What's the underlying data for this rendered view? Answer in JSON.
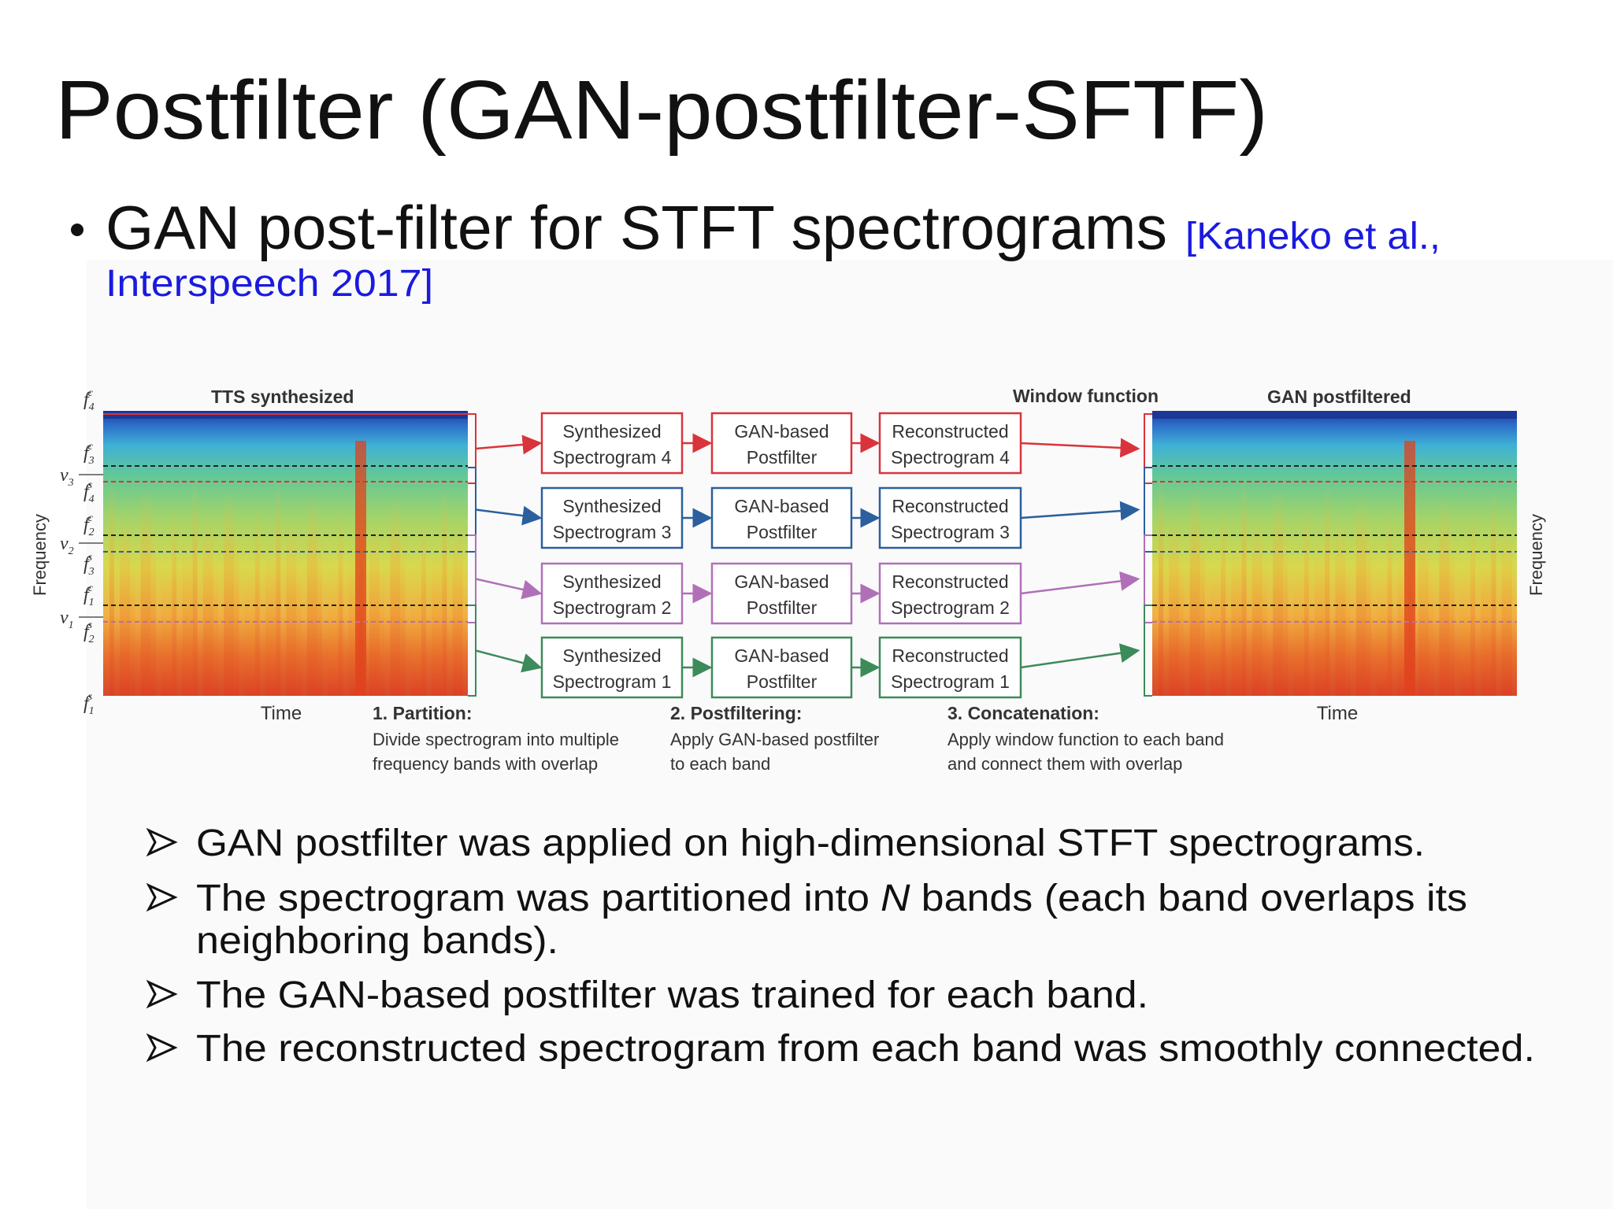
{
  "title": "Postfilter (GAN-postfilter-SFTF)",
  "bullet": {
    "text": "GAN post-filter for STFT spectrograms",
    "citation": [
      "[Kaneko et al.,",
      "Interspeech 2017]"
    ]
  },
  "figure": {
    "left_title": "TTS synthesized",
    "right_title": "GAN postfiltered",
    "window_label": "Window function",
    "y_axis_label": "Frequency",
    "x_axis_label": "Time",
    "freq_labels": [
      {
        "base": "f",
        "sub": "4",
        "sup": "c"
      },
      {
        "base": "f",
        "sub": "3",
        "sup": "c"
      },
      {
        "base": "v",
        "sub": "3"
      },
      {
        "base": "f",
        "sub": "4",
        "sup": "s"
      },
      {
        "base": "f",
        "sub": "2",
        "sup": "c"
      },
      {
        "base": "v",
        "sub": "2"
      },
      {
        "base": "f",
        "sub": "3",
        "sup": "s"
      },
      {
        "base": "f",
        "sub": "1",
        "sup": "c"
      },
      {
        "base": "v",
        "sub": "1"
      },
      {
        "base": "f",
        "sub": "2",
        "sup": "s"
      },
      {
        "base": "f",
        "sub": "1",
        "sup": "s"
      }
    ],
    "rows": [
      {
        "synth": [
          "Synthesized",
          "Spectrogram 4"
        ],
        "gan": [
          "GAN-based",
          "Postfilter"
        ],
        "recon": [
          "Reconstructed",
          "Spectrogram 4"
        ]
      },
      {
        "synth": [
          "Synthesized",
          "Spectrogram 3"
        ],
        "gan": [
          "GAN-based",
          "Postfilter"
        ],
        "recon": [
          "Reconstructed",
          "Spectrogram 3"
        ]
      },
      {
        "synth": [
          "Synthesized",
          "Spectrogram 2"
        ],
        "gan": [
          "GAN-based",
          "Postfilter"
        ],
        "recon": [
          "Reconstructed",
          "Spectrogram 2"
        ]
      },
      {
        "synth": [
          "Synthesized",
          "Spectrogram 1"
        ],
        "gan": [
          "GAN-based",
          "Postfilter"
        ],
        "recon": [
          "Reconstructed",
          "Spectrogram 1"
        ]
      }
    ],
    "steps": [
      {
        "title": "1. Partition:",
        "lines": [
          "Divide spectrogram into multiple",
          "frequency bands with overlap"
        ]
      },
      {
        "title": "2. Postfiltering:",
        "lines": [
          "Apply GAN-based postfilter",
          "to each band"
        ]
      },
      {
        "title": "3. Concatenation:",
        "lines": [
          "Apply window function to each band",
          "and connect them with overlap"
        ]
      }
    ]
  },
  "points": [
    {
      "text": "GAN postfilter was applied on high-dimensional STFT spectrograms."
    },
    {
      "before": "The spectrogram was partitioned into",
      "italic": "N",
      "after": "bands (each band overlaps its",
      "continuation": "neighboring bands)."
    },
    {
      "text": "The GAN-based postfilter was trained for each band."
    },
    {
      "text": "The reconstructed spectrogram from each band was smoothly connected."
    }
  ]
}
